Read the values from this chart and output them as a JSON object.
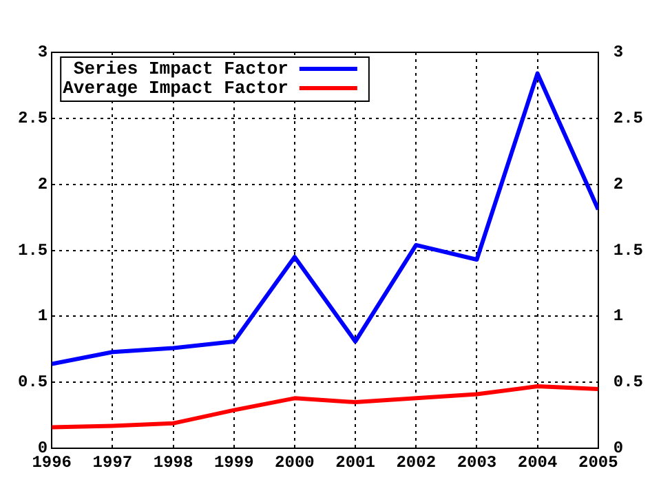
{
  "chart_data": {
    "type": "line",
    "x": [
      1996,
      1997,
      1998,
      1999,
      2000,
      2001,
      2002,
      2003,
      2004,
      2005
    ],
    "series": [
      {
        "name": "Series Impact Factor",
        "color": "#0000ff",
        "values": [
          0.64,
          0.73,
          0.76,
          0.81,
          1.45,
          0.81,
          1.54,
          1.43,
          2.84,
          1.81
        ]
      },
      {
        "name": "Average Impact Factor",
        "color": "#ff0000",
        "values": [
          0.16,
          0.17,
          0.19,
          0.29,
          0.38,
          0.35,
          0.38,
          0.41,
          0.47,
          0.45
        ]
      }
    ],
    "xlim": [
      1996,
      2005
    ],
    "xticks": [
      1996,
      1997,
      1998,
      1999,
      2000,
      2001,
      2002,
      2003,
      2004,
      2005
    ],
    "ylim": [
      0,
      3
    ],
    "yticks": [
      0,
      0.5,
      1,
      1.5,
      2,
      2.5,
      3
    ],
    "y2lim": [
      0,
      3
    ],
    "y2ticks": [
      0,
      0.5,
      1,
      1.5,
      2,
      2.5,
      3
    ],
    "grid": true,
    "legend": "top left",
    "marker": "none",
    "line_style": "solid"
  }
}
